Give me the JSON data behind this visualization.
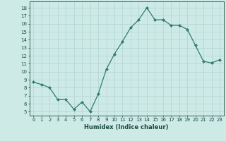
{
  "x": [
    0,
    1,
    2,
    3,
    4,
    5,
    6,
    7,
    8,
    9,
    10,
    11,
    12,
    13,
    14,
    15,
    16,
    17,
    18,
    19,
    20,
    21,
    22,
    23
  ],
  "y": [
    8.7,
    8.4,
    8.0,
    6.5,
    6.5,
    5.3,
    6.2,
    5.0,
    7.2,
    10.3,
    12.2,
    13.8,
    15.5,
    16.5,
    18.0,
    16.5,
    16.5,
    15.8,
    15.8,
    15.3,
    13.3,
    11.3,
    11.1,
    11.5
  ],
  "line_color": "#2e7d6e",
  "marker": "D",
  "marker_size": 2.0,
  "bg_color": "#ceeae7",
  "grid_color": "#b0d4d0",
  "xlabel": "Humidex (Indice chaleur)",
  "ylabel_ticks": [
    5,
    6,
    7,
    8,
    9,
    10,
    11,
    12,
    13,
    14,
    15,
    16,
    17,
    18
  ],
  "ylim": [
    4.5,
    18.8
  ],
  "xlim": [
    -0.5,
    23.5
  ],
  "tick_color": "#1a4a40",
  "linewidth": 0.9,
  "tick_fontsize": 5.0,
  "xlabel_fontsize": 6.0
}
